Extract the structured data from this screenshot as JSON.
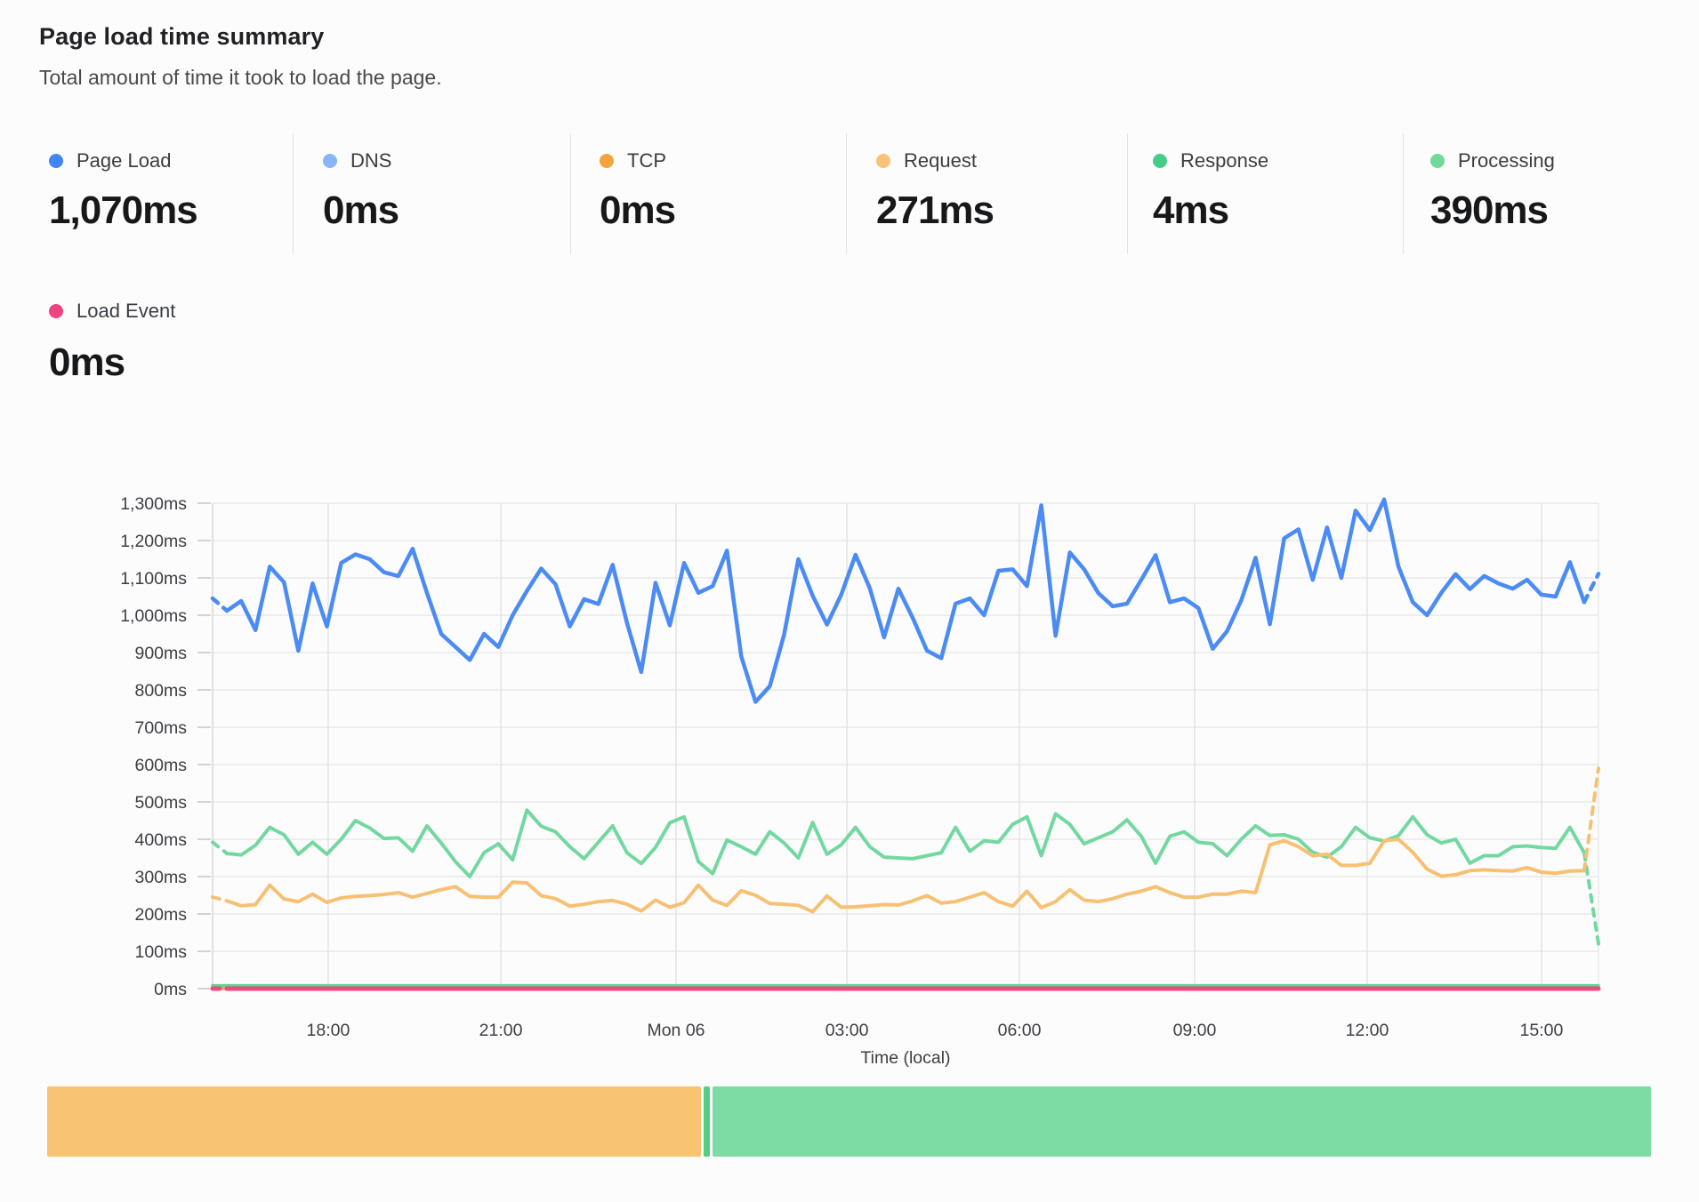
{
  "header": {
    "title": "Page load time summary",
    "subtitle": "Total amount of time it took to load the page."
  },
  "metrics": [
    {
      "id": "page-load",
      "label": "Page Load",
      "value": "1,070ms",
      "color": "#4285f4"
    },
    {
      "id": "dns",
      "label": "DNS",
      "value": "0ms",
      "color": "#8ab4f8"
    },
    {
      "id": "tcp",
      "label": "TCP",
      "value": "0ms",
      "color": "#f5a43c"
    },
    {
      "id": "request",
      "label": "Request",
      "value": "271ms",
      "color": "#f8c377"
    },
    {
      "id": "response",
      "label": "Response",
      "value": "4ms",
      "color": "#47cd89"
    },
    {
      "id": "processing",
      "label": "Processing",
      "value": "390ms",
      "color": "#6fd89b"
    },
    {
      "id": "load-event",
      "label": "Load Event",
      "value": "0ms",
      "color": "#f0437f"
    }
  ],
  "chart_data": {
    "type": "line",
    "title": "Page load time summary",
    "xlabel": "Time (local)",
    "ylabel": "",
    "ylim": [
      0,
      1300
    ],
    "y_ticks": [
      0,
      100,
      200,
      300,
      400,
      500,
      600,
      700,
      800,
      900,
      1000,
      1100,
      1200,
      1300
    ],
    "y_tick_suffix": "ms",
    "grid": true,
    "x_ticks": [
      {
        "label": "18:00",
        "f": 0.0834
      },
      {
        "label": "21:00",
        "f": 0.208
      },
      {
        "label": "Mon 06",
        "f": 0.3344
      },
      {
        "label": "03:00",
        "f": 0.4577
      },
      {
        "label": "06:00",
        "f": 0.5822
      },
      {
        "label": "09:00",
        "f": 0.7086
      },
      {
        "label": "12:00",
        "f": 0.8331
      },
      {
        "label": "15:00",
        "f": 0.9589
      }
    ],
    "series": [
      {
        "name": "DNS",
        "color": "#8ab4f8",
        "width": 3,
        "values_constant": 0
      },
      {
        "name": "TCP",
        "color": "#f5a43c",
        "width": 3,
        "values_constant": 0
      },
      {
        "name": "Processing",
        "color": "#73d8a0",
        "width": 4,
        "dash_start": true,
        "dash_end": true,
        "values": [
          392,
          362,
          358,
          384,
          432,
          412,
          360,
          392,
          360,
          400,
          450,
          430,
          402,
          404,
          368,
          436,
          390,
          340,
          300,
          364,
          388,
          345,
          478,
          435,
          420,
          380,
          348,
          392,
          436,
          364,
          335,
          378,
          444,
          460,
          340,
          308,
          398,
          380,
          360,
          420,
          390,
          350,
          445,
          360,
          385,
          432,
          380,
          352,
          350,
          348,
          356,
          364,
          432,
          368,
          396,
          392,
          440,
          460,
          356,
          468,
          440,
          388,
          404,
          420,
          452,
          408,
          336,
          408,
          420,
          392,
          388,
          356,
          400,
          436,
          410,
          412,
          400,
          365,
          352,
          380,
          432,
          404,
          395,
          410,
          460,
          412,
          390,
          400,
          336,
          356,
          356,
          380,
          382,
          378,
          376,
          432,
          364,
          120
        ]
      },
      {
        "name": "Request",
        "color": "#f7c073",
        "width": 4,
        "dash_start": true,
        "dash_end": true,
        "values": [
          245,
          235,
          222,
          225,
          277,
          240,
          233,
          253,
          231,
          243,
          247,
          249,
          252,
          257,
          245,
          255,
          265,
          273,
          247,
          245,
          245,
          285,
          283,
          249,
          241,
          221,
          226,
          233,
          236,
          226,
          208,
          237,
          218,
          230,
          277,
          237,
          223,
          262,
          250,
          228,
          226,
          223,
          206,
          248,
          218,
          219,
          222,
          225,
          224,
          235,
          249,
          229,
          233,
          245,
          257,
          233,
          221,
          261,
          217,
          233,
          265,
          237,
          233,
          241,
          253,
          261,
          273,
          257,
          245,
          245,
          253,
          253,
          261,
          257,
          385,
          396,
          380,
          356,
          360,
          330,
          330,
          336,
          396,
          400,
          365,
          320,
          301,
          305,
          316,
          318,
          316,
          315,
          324,
          312,
          309,
          315,
          316,
          590
        ]
      },
      {
        "name": "Response",
        "color": "#62d193",
        "width": 3.5,
        "values_constant": 8
      },
      {
        "name": "Load Event",
        "color": "#ea4c7d",
        "width": 5,
        "dash_start": true,
        "values_constant": 0
      },
      {
        "name": "Page Load",
        "color": "#4a8bf5",
        "width": 4.5,
        "dash_start": true,
        "dash_end": true,
        "values": [
          1045,
          1012,
          1038,
          960,
          1130,
          1088,
          905,
          1085,
          970,
          1140,
          1163,
          1150,
          1115,
          1105,
          1178,
          1060,
          950,
          915,
          880,
          950,
          915,
          1000,
          1065,
          1125,
          1083,
          970,
          1043,
          1030,
          1135,
          980,
          848,
          1087,
          973,
          1140,
          1060,
          1078,
          1173,
          890,
          768,
          810,
          948,
          1150,
          1052,
          975,
          1055,
          1162,
          1072,
          941,
          1071,
          993,
          905,
          885,
          1031,
          1045,
          1000,
          1119,
          1123,
          1078,
          1294,
          945,
          1168,
          1123,
          1059,
          1024,
          1031,
          1095,
          1161,
          1035,
          1045,
          1019,
          910,
          957,
          1040,
          1154,
          976,
          1206,
          1230,
          1095,
          1235,
          1100,
          1280,
          1228,
          1310,
          1130,
          1035,
          1000,
          1060,
          1110,
          1070,
          1105,
          1085,
          1071,
          1095,
          1055,
          1050,
          1142,
          1035,
          1111
        ]
      }
    ]
  },
  "bottom_bar": {
    "segments": [
      {
        "name": "request-span",
        "color": "#f8c472",
        "percent": 40.8
      },
      {
        "name": "divider-span",
        "color": "#55cd83",
        "percent": 0.35
      },
      {
        "name": "processing-span",
        "color": "#7ddca3",
        "percent": 58.55
      }
    ]
  }
}
